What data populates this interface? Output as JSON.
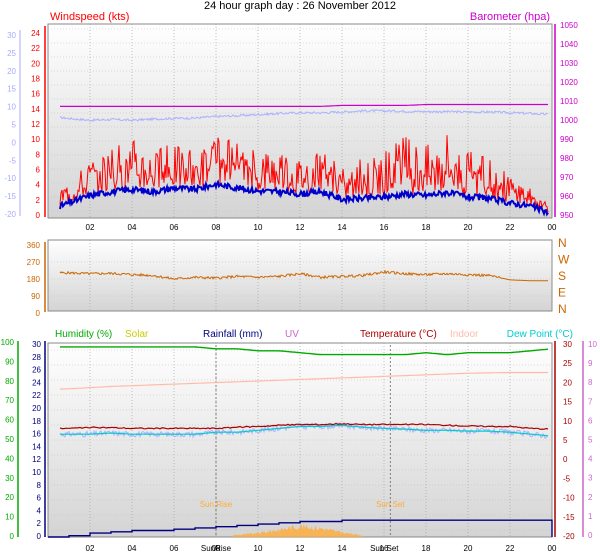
{
  "title": "24 hour graph day : 26 November 2012",
  "x_ticks": [
    "02",
    "04",
    "06",
    "08",
    "10",
    "12",
    "14",
    "16",
    "18",
    "20",
    "22",
    "00"
  ],
  "colors": {
    "wind": "#ff0000",
    "wind_avg": "#0000cc",
    "baro": "#cc00cc",
    "dir": "#cc6600",
    "humidity": "#00aa00",
    "solar": "#cccc00",
    "rain": "#000080",
    "uv": "#cc66cc",
    "temp": "#aa0000",
    "indoor": "#ffbbaa",
    "dew": "#00cccc",
    "solarfill": "#ffaa33",
    "gust": "#aab0ff",
    "left_axis": "#aaaaff"
  },
  "chart_data": [
    {
      "type": "line",
      "name": "wind",
      "labels": {
        "left": "Windspeed (kts)",
        "right": "Barometer (hpa)"
      },
      "far_left_ticks": [
        "30",
        "25",
        "20",
        "15",
        "10",
        "5",
        "0",
        "-5",
        "-10",
        "-15",
        "-20"
      ],
      "left_ticks": [
        "24",
        "22",
        "20",
        "18",
        "16",
        "14",
        "12",
        "10",
        "8",
        "6",
        "4",
        "2",
        "0"
      ],
      "right_ticks": [
        "1050",
        "1040",
        "1030",
        "1020",
        "1010",
        "1000",
        "990",
        "980",
        "970",
        "960",
        "950"
      ],
      "ylim_left": [
        0,
        25
      ],
      "ylim_right": [
        947,
        1053
      ],
      "x": [
        0,
        1,
        2,
        3,
        4,
        5,
        6,
        7,
        8,
        9,
        10,
        11,
        12,
        13,
        14,
        15,
        16,
        17,
        18,
        19,
        20,
        21,
        22,
        23,
        24
      ],
      "series": [
        {
          "key": "wind_gust",
          "values": [
            3,
            5,
            8,
            10,
            11,
            9,
            10,
            9,
            11,
            10,
            9,
            10,
            8,
            9,
            7,
            8,
            9,
            11,
            10,
            12,
            9,
            8,
            6,
            4,
            2
          ]
        },
        {
          "key": "wind_avg",
          "values": [
            1,
            2,
            3,
            3.5,
            3.8,
            3.5,
            4,
            3.8,
            4.5,
            4,
            3.6,
            3.5,
            3.2,
            3.5,
            2.5,
            2.6,
            2.8,
            3.2,
            3,
            3.4,
            2.8,
            2.6,
            2,
            1.6,
            0.5
          ]
        },
        {
          "key": "barometer",
          "values": [
            1008,
            1008,
            1008,
            1008,
            1008,
            1008,
            1008,
            1008,
            1008,
            1008,
            1008,
            1008,
            1008,
            1008,
            1008.5,
            1008.5,
            1008.5,
            1008.5,
            1009,
            1009,
            1009,
            1009,
            1009,
            1009,
            1009
          ]
        },
        {
          "key": "left_axis_series",
          "values": [
            7,
            6.5,
            6,
            6.2,
            6,
            6.3,
            6.5,
            6.6,
            7,
            7.2,
            7.5,
            7.8,
            8,
            8,
            8.2,
            8.5,
            8.5,
            8.4,
            8.3,
            8.3,
            8.2,
            8.2,
            8,
            7.8,
            7.5
          ]
        }
      ]
    },
    {
      "type": "line",
      "name": "wind_direction",
      "left_ticks": [
        "360",
        "270",
        "180",
        "90",
        "0"
      ],
      "right_ticks": [
        "N",
        "W",
        "S",
        "E",
        "N"
      ],
      "ylim": [
        0,
        360
      ],
      "x": [
        0,
        1,
        2,
        3,
        4,
        5,
        6,
        7,
        8,
        9,
        10,
        11,
        12,
        13,
        14,
        15,
        16,
        17,
        18,
        19,
        20,
        21,
        22,
        23,
        24
      ],
      "values": [
        195,
        195,
        190,
        192,
        185,
        180,
        160,
        170,
        165,
        175,
        170,
        175,
        190,
        170,
        175,
        180,
        200,
        190,
        185,
        190,
        185,
        180,
        155,
        150,
        150
      ]
    },
    {
      "type": "line",
      "name": "multi",
      "labels": {
        "humidity": "Humidity (%)",
        "solar": "Solar",
        "rain": "Rainfall (mm)",
        "uv": "UV",
        "temp": "Temperature (°C)",
        "indoor": "Indoor",
        "dew": "Dew Point (°C)"
      },
      "hum_ticks": [
        "100",
        "90",
        "80",
        "70",
        "60",
        "50",
        "40",
        "30",
        "20",
        "10",
        "0"
      ],
      "rain_ticks": [
        "30",
        "28",
        "26",
        "24",
        "22",
        "20",
        "18",
        "16",
        "14",
        "12",
        "10",
        "8",
        "6",
        "4",
        "2",
        "0"
      ],
      "temp_ticks": [
        "30",
        "25",
        "20",
        "15",
        "10",
        "5",
        "0",
        "-5",
        "-10",
        "-15",
        "-20"
      ],
      "uv_ticks": [
        "10",
        "9",
        "8",
        "7",
        "6",
        "5",
        "4",
        "3",
        "2",
        "1",
        "0"
      ],
      "annotations": {
        "sunrise": "Sun Rise",
        "sunset": "Sun Set"
      },
      "x_extra_labels": [
        "SunRise",
        "Sun Set"
      ],
      "sunrise_hour": 8.0,
      "sunset_hour": 16.3,
      "x": [
        0,
        1,
        2,
        3,
        4,
        5,
        6,
        7,
        8,
        9,
        10,
        11,
        12,
        13,
        14,
        15,
        16,
        17,
        18,
        19,
        20,
        21,
        22,
        23,
        24
      ],
      "humidity": [
        98,
        98,
        98,
        98,
        98,
        98,
        98,
        98,
        97,
        97,
        96,
        96,
        95,
        94,
        94,
        94,
        94,
        94,
        95,
        94,
        95,
        95,
        95,
        96,
        97
      ],
      "temperature": [
        8,
        8,
        8.2,
        8.2,
        8,
        8,
        8,
        8,
        8,
        8.3,
        8.5,
        8.8,
        9,
        9,
        9.2,
        9,
        9,
        9,
        9,
        8.8,
        8.6,
        8.5,
        8.5,
        8,
        7.8
      ],
      "dew_point": [
        6.5,
        6.5,
        6.5,
        6.8,
        6.5,
        6.5,
        6.5,
        6.5,
        7,
        7,
        7.5,
        8,
        8.5,
        8.5,
        8.8,
        8.3,
        8,
        7.8,
        7.5,
        7.5,
        7.3,
        7.3,
        7,
        6.5,
        6
      ],
      "indoor_temp": [
        18,
        18.2,
        18.5,
        18.8,
        19,
        19.2,
        19.4,
        19.6,
        19.8,
        20,
        20.2,
        20.4,
        20.6,
        20.8,
        21,
        21.2,
        21.4,
        21.6,
        21.8,
        22,
        22.2,
        22.3,
        22.4,
        22.4,
        22.4
      ],
      "rainfall_cum": [
        0,
        0.2,
        0.6,
        0.8,
        1.0,
        1.0,
        1.2,
        1.4,
        1.6,
        1.8,
        2.0,
        2.2,
        2.4,
        2.4,
        2.6,
        2.6,
        2.6,
        2.6,
        2.6,
        2.6,
        2.6,
        2.6,
        2.6,
        2.6,
        0
      ],
      "solar": [
        0,
        0,
        0,
        0,
        0,
        0,
        0,
        0,
        0,
        0.3,
        0.5,
        1.0,
        1.5,
        1.2,
        0.6,
        0.2,
        0,
        0,
        0,
        0,
        0,
        0,
        0,
        0,
        0
      ]
    }
  ]
}
